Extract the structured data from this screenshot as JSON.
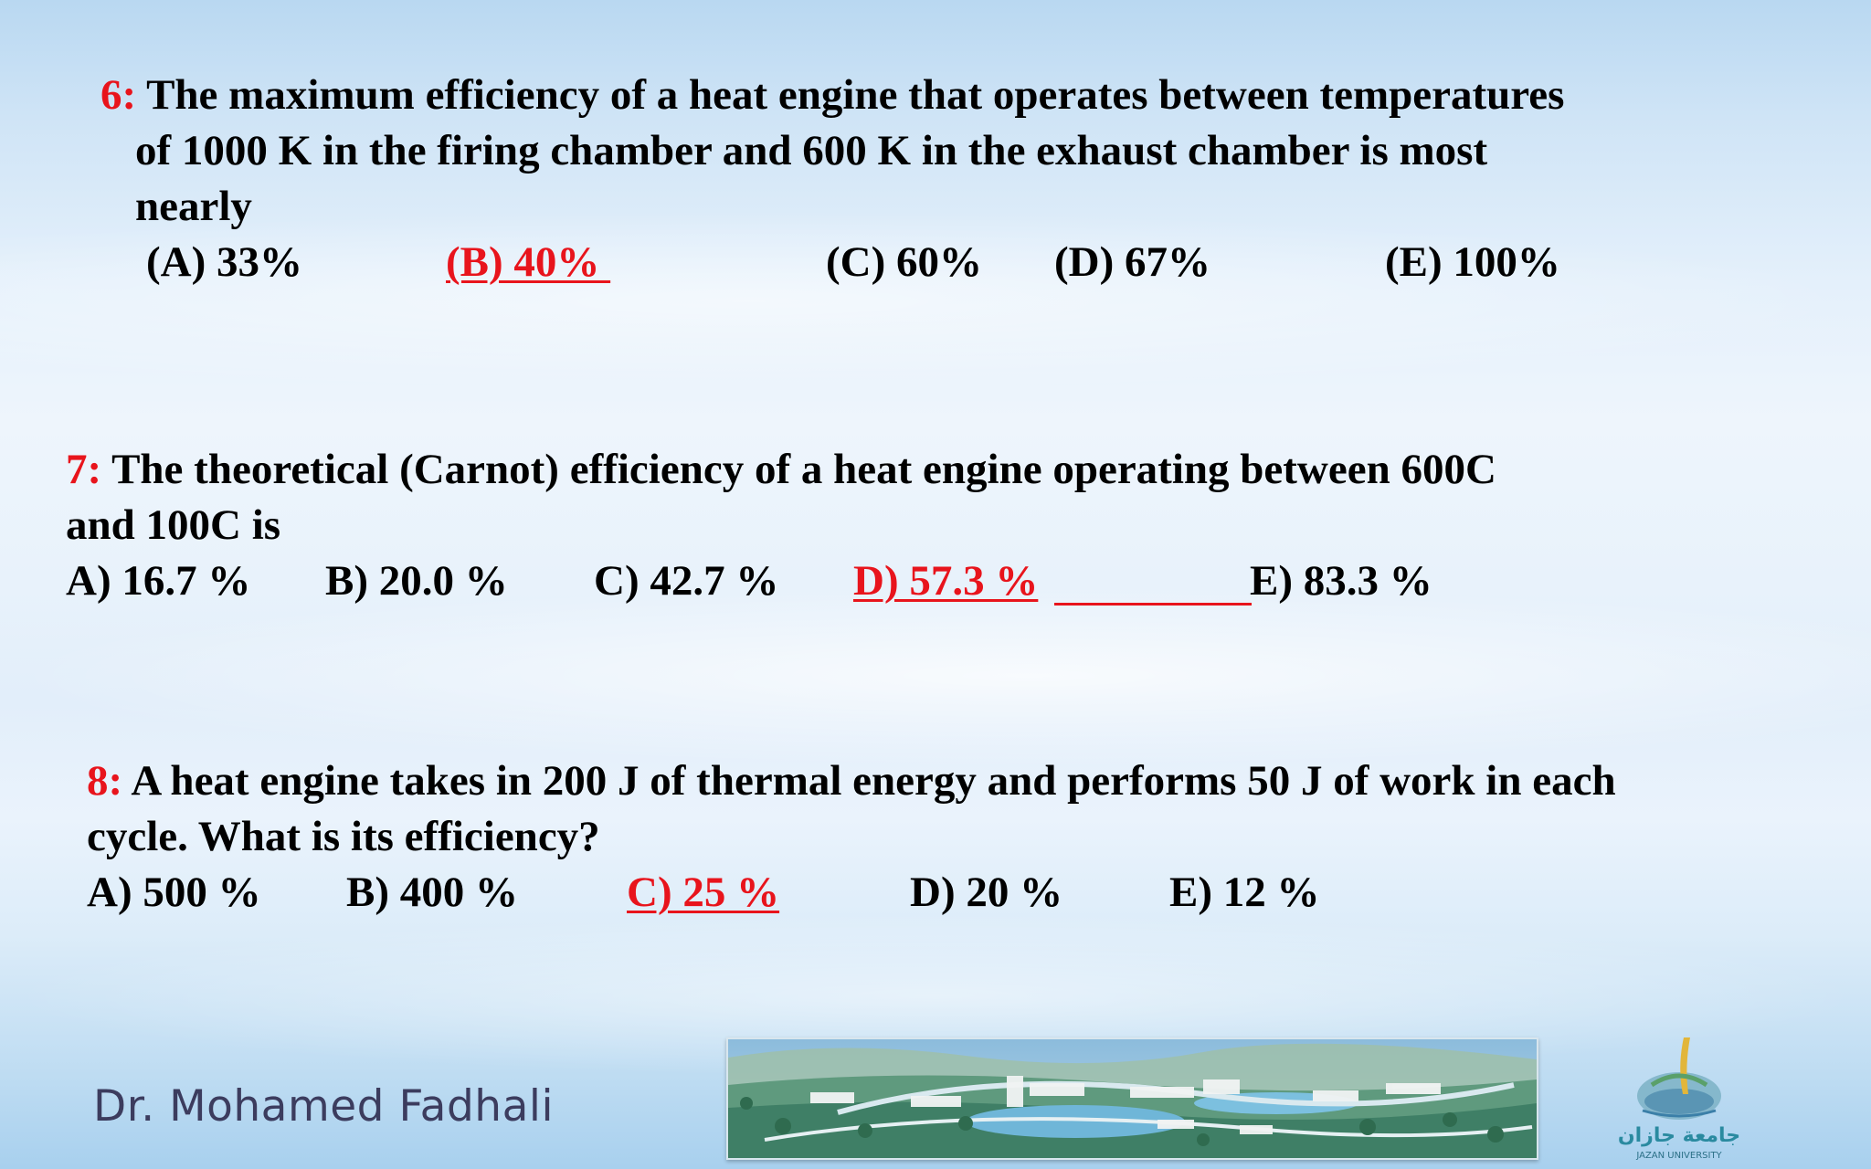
{
  "colors": {
    "answer_red": "#e8141c",
    "text_black": "#000000",
    "footer_text": "#3c3c5e",
    "background": "#dcecf9"
  },
  "q6": {
    "number": "6:",
    "lines": [
      "The maximum efficiency of a heat engine that operates between temperatures",
      "of 1000 K in the firing chamber and 600 K in the exhaust chamber is most",
      "nearly"
    ],
    "options": [
      "(A) 33%",
      "(B) 40% ",
      "(C) 60%",
      "(D) 67%",
      "(E) 100%"
    ],
    "correct": "(B) 40% "
  },
  "q7": {
    "number": "7:",
    "lines": [
      "The theoretical (Carnot) efficiency of a heat engine operating between 600C",
      "and 100C is"
    ],
    "options": [
      "A) 16.7 %",
      "B) 20.0 %",
      "C) 42.7 %",
      "D) 57.3 %",
      "E) 83.3 %"
    ],
    "correct": "D) 57.3 %"
  },
  "q8": {
    "number": "8:",
    "lines": [
      "A heat engine takes in 200 J of thermal energy and performs 50 J of work in each",
      "cycle. What is its efficiency?"
    ],
    "options": [
      "A) 500 %",
      "B) 400 %",
      "C) 25 %",
      "D) 20 %",
      "E) 12 %"
    ],
    "correct": "C) 25 %"
  },
  "footer": {
    "author": "Dr. Mohamed Fadhali",
    "logo_text_arabic": "جامعة جازان",
    "logo_text_english": "JAZAN UNIVERSITY"
  }
}
